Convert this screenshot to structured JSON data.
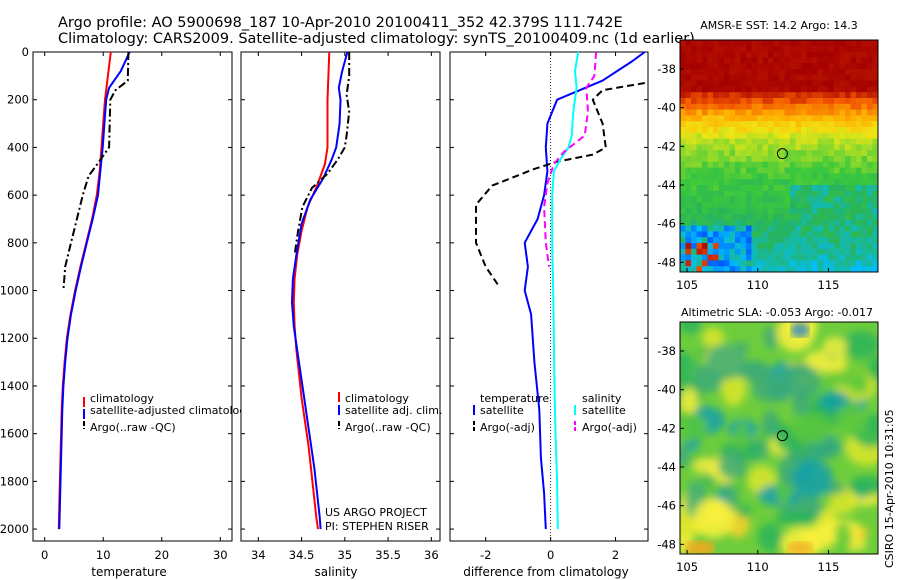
{
  "header": {
    "title_line1": "Argo profile: AO 5900698_187 10-Apr-2010 20100411_352 42.379S 111.742E",
    "title_line2": "Climatology: CARS2009. Satellite-adjusted climatology: synTS_20100409.nc (1d earlier)"
  },
  "colors": {
    "climatology": "#ff0000",
    "satellite": "#0000ff",
    "argo": "#000000",
    "salinity_satellite": "#00ffff",
    "salinity_argo": "#ff00ff"
  },
  "chart_data": [
    {
      "name": "temperature_panel",
      "type": "line",
      "xlabel": "temperature",
      "xlim": [
        -2,
        32
      ],
      "xticks": [
        "0",
        "10",
        "20",
        "30"
      ],
      "xtick_values": [
        0,
        10,
        20,
        30
      ],
      "ylim": [
        0,
        2050
      ],
      "yticks": [
        "0",
        "200",
        "400",
        "600",
        "800",
        "1000",
        "1200",
        "1400",
        "1600",
        "1800",
        "2000"
      ],
      "ytick_values": [
        0,
        200,
        400,
        600,
        800,
        1000,
        1200,
        1400,
        1600,
        1800,
        2000
      ],
      "y_reversed": true,
      "legend": {
        "placement": "center-right",
        "entries": [
          "climatology",
          "satellite-adjusted climatology",
          "Argo(..raw -QC)"
        ]
      },
      "series": [
        {
          "name": "climatology",
          "color_key": "climatology",
          "dash": "solid",
          "points": [
            [
              11.3,
              0
            ],
            [
              10.8,
              100
            ],
            [
              10.3,
              200
            ],
            [
              10,
              300
            ],
            [
              9.7,
              400
            ],
            [
              9.4,
              500
            ],
            [
              8.9,
              600
            ],
            [
              8.1,
              700
            ],
            [
              7.1,
              800
            ],
            [
              6.1,
              900
            ],
            [
              5.2,
              1000
            ],
            [
              4.4,
              1100
            ],
            [
              3.8,
              1200
            ],
            [
              3.4,
              1300
            ],
            [
              3.1,
              1400
            ],
            [
              2.9,
              1500
            ],
            [
              2.8,
              1600
            ],
            [
              2.7,
              1700
            ],
            [
              2.6,
              1800
            ],
            [
              2.5,
              1900
            ],
            [
              2.4,
              2000
            ]
          ]
        },
        {
          "name": "satellite-adjusted climatology",
          "color_key": "satellite",
          "dash": "solid",
          "points": [
            [
              14.5,
              0
            ],
            [
              13,
              80
            ],
            [
              11,
              150
            ],
            [
              10.5,
              200
            ],
            [
              10.2,
              300
            ],
            [
              9.9,
              400
            ],
            [
              9.5,
              500
            ],
            [
              9.1,
              600
            ],
            [
              8.2,
              700
            ],
            [
              7.2,
              800
            ],
            [
              6.2,
              900
            ],
            [
              5.3,
              1000
            ],
            [
              4.5,
              1100
            ],
            [
              3.9,
              1200
            ],
            [
              3.5,
              1300
            ],
            [
              3.2,
              1400
            ],
            [
              3,
              1500
            ],
            [
              2.9,
              1600
            ],
            [
              2.8,
              1700
            ],
            [
              2.7,
              1800
            ],
            [
              2.6,
              1900
            ],
            [
              2.5,
              2000
            ]
          ]
        },
        {
          "name": "Argo(..raw -QC)",
          "color_key": "argo",
          "dash": "dashdot",
          "points": [
            [
              14.3,
              0
            ],
            [
              14.2,
              120
            ],
            [
              12.1,
              160
            ],
            [
              11.2,
              200
            ],
            [
              11.1,
              300
            ],
            [
              11,
              400
            ],
            [
              8.7,
              480
            ],
            [
              7.5,
              520
            ],
            [
              6.5,
              600
            ],
            [
              5.5,
              700
            ],
            [
              4.5,
              800
            ],
            [
              3.5,
              900
            ],
            [
              3.2,
              1000
            ]
          ]
        }
      ]
    },
    {
      "name": "salinity_panel",
      "type": "line",
      "xlabel": "salinity",
      "xlim": [
        33.8,
        36.1
      ],
      "xticks": [
        "34",
        "34.5",
        "35",
        "35.5",
        "36"
      ],
      "xtick_values": [
        34,
        34.5,
        35,
        35.5,
        36
      ],
      "ylim": [
        0,
        2050
      ],
      "y_reversed": true,
      "legend": {
        "placement": "center-right",
        "entries": [
          "climatology",
          "satellite adj. clim.",
          "Argo(..raw -QC)"
        ]
      },
      "annotations": [
        "US ARGO PROJECT",
        "PI: STEPHEN RISER"
      ],
      "series": [
        {
          "name": "climatology",
          "color_key": "climatology",
          "dash": "solid",
          "points": [
            [
              34.82,
              0
            ],
            [
              34.81,
              100
            ],
            [
              34.8,
              200
            ],
            [
              34.8,
              300
            ],
            [
              34.8,
              400
            ],
            [
              34.77,
              470
            ],
            [
              34.68,
              560
            ],
            [
              34.57,
              650
            ],
            [
              34.5,
              750
            ],
            [
              34.45,
              850
            ],
            [
              34.42,
              950
            ],
            [
              34.41,
              1050
            ],
            [
              34.42,
              1150
            ],
            [
              34.44,
              1250
            ],
            [
              34.47,
              1350
            ],
            [
              34.5,
              1450
            ],
            [
              34.54,
              1550
            ],
            [
              34.58,
              1650
            ],
            [
              34.61,
              1750
            ],
            [
              34.64,
              1850
            ],
            [
              34.67,
              1950
            ],
            [
              34.69,
              2000
            ]
          ]
        },
        {
          "name": "satellite adj. clim.",
          "color_key": "satellite",
          "dash": "solid",
          "points": [
            [
              35.03,
              0
            ],
            [
              34.97,
              80
            ],
            [
              34.93,
              150
            ],
            [
              34.95,
              200
            ],
            [
              34.94,
              300
            ],
            [
              34.9,
              400
            ],
            [
              34.85,
              450
            ],
            [
              34.75,
              530
            ],
            [
              34.6,
              620
            ],
            [
              34.5,
              720
            ],
            [
              34.44,
              850
            ],
            [
              34.4,
              950
            ],
            [
              34.39,
              1050
            ],
            [
              34.41,
              1150
            ],
            [
              34.45,
              1250
            ],
            [
              34.49,
              1350
            ],
            [
              34.53,
              1450
            ],
            [
              34.57,
              1550
            ],
            [
              34.61,
              1650
            ],
            [
              34.65,
              1750
            ],
            [
              34.68,
              1850
            ],
            [
              34.71,
              1950
            ],
            [
              34.72,
              2000
            ]
          ]
        },
        {
          "name": "Argo(..raw -QC)",
          "color_key": "argo",
          "dash": "dashdot",
          "points": [
            [
              35.05,
              0
            ],
            [
              35.05,
              100
            ],
            [
              35.02,
              180
            ],
            [
              35.05,
              250
            ],
            [
              35.02,
              350
            ],
            [
              35,
              400
            ],
            [
              34.92,
              450
            ],
            [
              34.8,
              510
            ],
            [
              34.62,
              570
            ],
            [
              34.51,
              650
            ],
            [
              34.46,
              750
            ],
            [
              34.42,
              850
            ]
          ]
        }
      ]
    },
    {
      "name": "difference_panel",
      "type": "line",
      "xlabel": "difference from climatology",
      "xlim": [
        -3.1,
        3
      ],
      "xticks": [
        "-2",
        "0",
        "2"
      ],
      "xtick_values": [
        -2,
        0,
        2
      ],
      "ylim": [
        0,
        2050
      ],
      "y_reversed": true,
      "legend": {
        "placement": "center",
        "column_titles": [
          "temperature",
          "salinity"
        ],
        "entries": [
          "satellite",
          "Argo(-adj)",
          "satellite",
          "Argo(-adj)"
        ]
      },
      "series": [
        {
          "name": "temperature satellite",
          "color_key": "satellite",
          "dash": "solid",
          "points": [
            [
              2.9,
              0
            ],
            [
              2.5,
              40
            ],
            [
              1.6,
              120
            ],
            [
              0.2,
              200
            ],
            [
              -0.1,
              300
            ],
            [
              -0.15,
              400
            ],
            [
              -0.1,
              500
            ],
            [
              -0.2,
              600
            ],
            [
              -0.4,
              700
            ],
            [
              -0.8,
              800
            ],
            [
              -0.7,
              900
            ],
            [
              -0.8,
              1000
            ],
            [
              -0.6,
              1100
            ],
            [
              -0.5,
              1300
            ],
            [
              -0.35,
              1500
            ],
            [
              -0.3,
              1700
            ],
            [
              -0.2,
              1850
            ],
            [
              -0.15,
              2000
            ]
          ]
        },
        {
          "name": "temperature Argo(-adj)",
          "color_key": "argo",
          "dash": "dashed",
          "points": [
            [
              2.9,
              130
            ],
            [
              1.6,
              160
            ],
            [
              1.3,
              200
            ],
            [
              1.6,
              300
            ],
            [
              1.7,
              400
            ],
            [
              1.3,
              430
            ],
            [
              0.2,
              460
            ],
            [
              -0.5,
              490
            ],
            [
              -1.8,
              560
            ],
            [
              -2.3,
              640
            ],
            [
              -2.3,
              800
            ],
            [
              -2,
              900
            ],
            [
              -1.6,
              980
            ]
          ]
        },
        {
          "name": "salinity satellite",
          "color_key": "salinity_satellite",
          "dash": "solid",
          "points": [
            [
              0.85,
              0
            ],
            [
              0.75,
              80
            ],
            [
              0.8,
              150
            ],
            [
              0.7,
              250
            ],
            [
              0.65,
              350
            ],
            [
              0.55,
              400
            ],
            [
              0.3,
              450
            ],
            [
              0.1,
              500
            ],
            [
              0.05,
              600
            ],
            [
              0.05,
              800
            ],
            [
              0.08,
              1000
            ],
            [
              0.1,
              1200
            ],
            [
              0.12,
              1400
            ],
            [
              0.15,
              1600
            ],
            [
              0.2,
              1800
            ],
            [
              0.22,
              2000
            ]
          ]
        },
        {
          "name": "salinity Argo(-adj)",
          "color_key": "salinity_argo",
          "dash": "dashed",
          "points": [
            [
              1.4,
              0
            ],
            [
              1.35,
              100
            ],
            [
              1.1,
              150
            ],
            [
              1.15,
              250
            ],
            [
              1.05,
              350
            ],
            [
              0.4,
              420
            ],
            [
              0.1,
              470
            ],
            [
              -0.1,
              550
            ],
            [
              -0.2,
              650
            ],
            [
              -0.15,
              800
            ],
            [
              -0.05,
              900
            ]
          ]
        }
      ]
    },
    {
      "name": "sst_map",
      "type": "heatmap",
      "title": "AMSR-E SST: 14.2 Argo: 14.3",
      "xlim": [
        104.5,
        118.5
      ],
      "ylim": [
        -48.5,
        -36.5
      ],
      "xticks": [
        "105",
        "110",
        "115"
      ],
      "xtick_values": [
        105,
        110,
        115
      ],
      "yticks": [
        "-38",
        "-40",
        "-42",
        "-44",
        "-46",
        "-48"
      ],
      "ytick_values": [
        -38,
        -40,
        -42,
        -44,
        -46,
        -48
      ],
      "marker": [
        111.742,
        -42.379
      ]
    },
    {
      "name": "sla_map",
      "type": "heatmap",
      "title": "Altimetric SLA: -0.053 Argo: -0.017",
      "xlim": [
        104.5,
        118.5
      ],
      "ylim": [
        -48.5,
        -36.5
      ],
      "xticks": [
        "105",
        "110",
        "115"
      ],
      "xtick_values": [
        105,
        110,
        115
      ],
      "yticks": [
        "-38",
        "-40",
        "-42",
        "-44",
        "-46",
        "-48"
      ],
      "ytick_values": [
        -38,
        -40,
        -42,
        -44,
        -46,
        -48
      ],
      "marker": [
        111.742,
        -42.379
      ],
      "side_label": "CSIRO 15-Apr-2010 10:31:05"
    }
  ]
}
